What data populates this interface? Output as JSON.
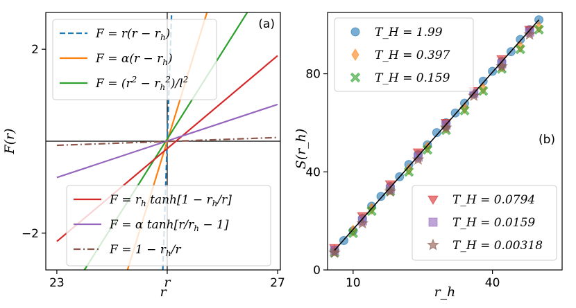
{
  "chart_data": [
    {
      "panel": "(a)",
      "type": "line",
      "xlabel": "r",
      "ylabel": "F(r)",
      "xlim": [
        22.8,
        27.05
      ],
      "ylim": [
        -2.8,
        2.8
      ],
      "x_ticks": [
        {
          "value": 23,
          "label": "23"
        },
        {
          "value": 25,
          "label": "r"
        },
        {
          "value": 27,
          "label": "27"
        }
      ],
      "y_ticks": [
        {
          "value": 2,
          "label": "2"
        },
        {
          "value": -2,
          "label": "−2"
        }
      ],
      "reference_lines": {
        "r_h": 25,
        "y_zero": 0
      },
      "series": [
        {
          "name": "F = r(r − r_h)",
          "color": "#1f77b4",
          "dash": "dashed",
          "x": [
            24.92,
            25.08
          ],
          "y": [
            -2.8,
            2.8
          ]
        },
        {
          "name": "F = α(r − r_h)",
          "color": "#ff7f0e",
          "dash": "solid",
          "x": [
            24.28,
            25.72
          ],
          "y": [
            -2.8,
            2.8
          ]
        },
        {
          "name": "F = (r² − r_h²)/l²",
          "color": "#2ca02c",
          "dash": "solid",
          "x": [
            23.5,
            26.45
          ],
          "y": [
            -2.8,
            2.8
          ]
        },
        {
          "name": "F = r_h tanh[1 − r_h/r]",
          "color": "#d62728",
          "dash": "solid",
          "x": [
            23,
            27
          ],
          "y": [
            -2.18,
            1.86
          ]
        },
        {
          "name": "F = α tanh[r/r_h − 1]",
          "color": "#9467bd",
          "dash": "solid",
          "x": [
            23,
            27
          ],
          "y": [
            -0.79,
            0.8
          ]
        },
        {
          "name": "F = 1 − r_h/r",
          "color": "#8c564b",
          "dash": "dashdot",
          "x": [
            23,
            27
          ],
          "y": [
            -0.09,
            0.08
          ]
        }
      ],
      "legend_upper": {
        "placement": "top-left",
        "items": [
          "F = r(r − r_h)",
          "F = α(r − r_h)",
          "F = (r² − r_h²)/l²"
        ]
      },
      "legend_lower": {
        "placement": "bottom-right",
        "items": [
          "F = r_h tanh[1 − r_h/r]",
          "F = α tanh[r/r_h − 1]",
          "F = 1 − r_h/r"
        ]
      }
    },
    {
      "panel": "(b)",
      "type": "scatter",
      "xlabel": "r_h",
      "ylabel": "S(r_h)",
      "xlim": [
        4.5,
        55
      ],
      "ylim": [
        0,
        105
      ],
      "x_ticks": [
        {
          "value": 10,
          "label": "10"
        },
        {
          "value": 40,
          "label": "40"
        }
      ],
      "y_ticks": [
        {
          "value": 0,
          "label": "0"
        },
        {
          "value": 40,
          "label": "40"
        },
        {
          "value": 80,
          "label": "80"
        }
      ],
      "fit_line": {
        "x": [
          6,
          50
        ],
        "y": [
          8,
          102
        ]
      },
      "series": [
        {
          "name": "T_H = 1.99",
          "color": "#1f77b4",
          "marker": "circle",
          "x": [
            6,
            8,
            10,
            12,
            14,
            16,
            18,
            20,
            22,
            24,
            26,
            28,
            30,
            32,
            34,
            36,
            38,
            40,
            42,
            44,
            46,
            48,
            50
          ],
          "y": [
            8,
            12,
            16,
            21,
            26,
            30,
            34,
            38,
            43,
            47,
            51,
            56,
            60,
            64,
            68,
            72,
            77,
            81,
            85,
            89,
            94,
            98,
            102
          ]
        },
        {
          "name": "T_H = 0.397",
          "color": "#ff7f0e",
          "marker": "diamond",
          "x": [
            6,
            10,
            14,
            18,
            22,
            26,
            30,
            34,
            38,
            42,
            46,
            50
          ],
          "y": [
            8,
            16,
            25,
            33,
            41,
            50,
            58,
            66,
            74,
            83,
            91,
            99
          ]
        },
        {
          "name": "T_H = 0.159",
          "color": "#2ca02c",
          "marker": "x",
          "x": [
            6,
            10,
            14,
            18,
            22,
            26,
            30,
            34,
            38,
            42,
            46,
            50
          ],
          "y": [
            7,
            15,
            24,
            32,
            40,
            49,
            57,
            65,
            73,
            82,
            90,
            98
          ]
        },
        {
          "name": "T_H = 0.0794",
          "color": "#d62728",
          "marker": "triangle-down",
          "x": [
            6,
            12,
            18,
            24,
            30,
            36,
            42,
            48
          ],
          "y": [
            9,
            22,
            35,
            48,
            60,
            73,
            86,
            98
          ]
        },
        {
          "name": "T_H = 0.0159",
          "color": "#9467bd",
          "marker": "square",
          "x": [
            6,
            12,
            18,
            24,
            30,
            36,
            42,
            48
          ],
          "y": [
            8,
            20,
            33,
            46,
            59,
            72,
            84,
            97
          ]
        },
        {
          "name": "T_H = 0.00318",
          "color": "#8c564b",
          "marker": "star",
          "x": [
            6,
            12,
            18,
            24,
            30,
            36,
            42,
            48
          ],
          "y": [
            7,
            19,
            32,
            45,
            58,
            71,
            83,
            96
          ]
        }
      ],
      "legend_upper": {
        "placement": "top-left",
        "items": [
          "T_H = 1.99",
          "T_H = 0.397",
          "T_H = 0.159"
        ]
      },
      "legend_lower": {
        "placement": "bottom-right",
        "items": [
          "T_H = 0.0794",
          "T_H = 0.0159",
          "T_H = 0.00318"
        ]
      }
    }
  ]
}
